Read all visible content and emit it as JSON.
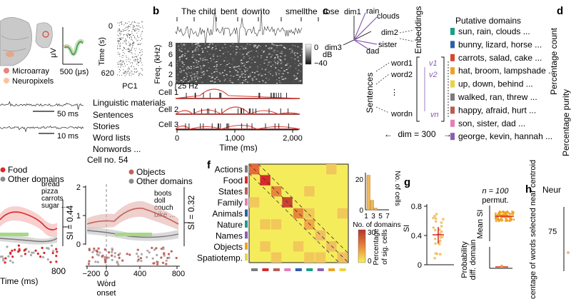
{
  "panels": {
    "b": "b",
    "c": "c",
    "d": "d",
    "f": "f",
    "g": "g",
    "h": "h"
  },
  "panel_a": {
    "legend": [
      "Microarray",
      "Neuropixels"
    ],
    "uv": "μV",
    "us_label": "500 (μs)",
    "time_label": "Time (s)",
    "time_ticks": [
      "0",
      "620"
    ],
    "pc_label": "PC1",
    "scale1": "50 ms",
    "scale2": "10 ms",
    "materials_title": "Linguistic materials",
    "materials": [
      "Sentences",
      "Stories",
      "Word lists",
      "Nonwords ..."
    ]
  },
  "panel_b": {
    "words": [
      "The",
      "child",
      "bent",
      "down",
      "to",
      "smell",
      "the",
      "rose"
    ],
    "freq_label": "Freq. (kHz)",
    "freq_ticks": [
      "8",
      "6",
      "4",
      "2",
      "0"
    ],
    "db_label": "dB",
    "db_ticks": [
      "0",
      "−40"
    ],
    "hz": "25 Hz",
    "cells": [
      "Cell 1",
      "Cell 2",
      "Cell 3"
    ],
    "time_ticks": [
      "0",
      "1,000",
      "2,000"
    ],
    "time_label": "Time (ms)"
  },
  "panel_c": {
    "dims": [
      "dim1",
      "dim2",
      "dim3"
    ],
    "embed_words": [
      "rain",
      "clouds",
      "sister",
      "dad"
    ],
    "embeddings_label": "Embeddings",
    "sentences_label": "Sentences",
    "words": [
      "word1",
      "word2",
      "wordn"
    ],
    "vectors": [
      "v1",
      "v2",
      "vn"
    ],
    "dim_label": "dim = 300",
    "domains_title": "Putative domains",
    "domains": [
      {
        "text": "sun, rain, clouds ...",
        "color": "#1a9e84"
      },
      {
        "text": "bunny, lizard, horse ...",
        "color": "#2b5fa8"
      },
      {
        "text": "carrots, salad, cake ...",
        "color": "#d9462f"
      },
      {
        "text": "hat, broom, lampshade ...",
        "color": "#f0a21e"
      },
      {
        "text": "up, down, behind ...",
        "color": "#ebd23f"
      },
      {
        "text": "walked, ran, threw ...",
        "color": "#7b7b7b"
      },
      {
        "text": "happy, afraid, hurt ...",
        "color": "#b85c55"
      },
      {
        "text": "son, sister, dad ...",
        "color": "#e47fb5"
      },
      {
        "text": "george, kevin, hannah ...",
        "color": "#8a5fb2"
      }
    ]
  },
  "panel_d": {
    "ylabel1": "Percentage count",
    "ylabel2": "Percentage purity"
  },
  "panel_e": {
    "legend1": [
      "Food",
      "Other domains"
    ],
    "words1": [
      "bread",
      "pizza",
      "carrots",
      "sugar ..."
    ],
    "si1": "SI = 0.44",
    "time_label": "Time (ms)",
    "t800": "800",
    "cell_no": "Cell no. 54",
    "legend2": [
      "Objects",
      "Other domains"
    ],
    "words2": [
      "boots",
      "doll",
      "couch",
      "bike ..."
    ],
    "si2": "SI = 0.32",
    "yticks": [
      "2",
      "1",
      "0"
    ],
    "xticks": [
      "−200",
      "0",
      "400",
      "800"
    ],
    "word_onset": [
      "Word",
      "onset"
    ]
  },
  "panel_f": {
    "domains": [
      "Actions",
      "Food",
      "States",
      "Family",
      "Animals",
      "Nature",
      "Names",
      "Objects",
      "Spatiotemp."
    ],
    "hist_yticks": [
      "20",
      "0"
    ],
    "hist_ylabel": "No. of cells",
    "hist_xticks": [
      "1",
      "3",
      "5",
      "7"
    ],
    "hist_xlabel": "No. of domains",
    "cbar_ticks": [
      "30",
      "0"
    ],
    "cbar_label": [
      "Percentage",
      "of sig. cells"
    ]
  },
  "panel_g": {
    "si_label": "SI",
    "yticks": [
      "0.8",
      "0.4",
      "0"
    ],
    "n_label": "n = 100",
    "permut": "permut.",
    "mean_si": "Mean SI",
    "prob": [
      "Probability",
      "diff. domain"
    ]
  },
  "panel_h": {
    "label": "Percentage of words selected near centroid",
    "neu": "Neur",
    "tick": "75"
  }
}
